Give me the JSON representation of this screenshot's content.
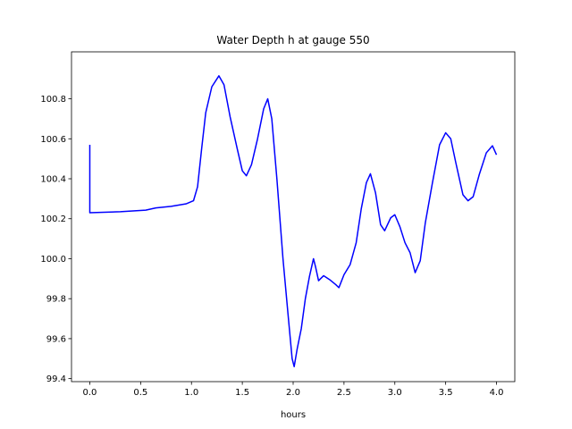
{
  "chart_data": {
    "type": "line",
    "title": "Water Depth h at gauge 550",
    "xlabel": "hours",
    "ylabel": "",
    "xlim": [
      -0.18,
      4.18
    ],
    "ylim": [
      99.385,
      101.035
    ],
    "grid": false,
    "x_ticks": [
      {
        "value": 0.0,
        "label": "0.0"
      },
      {
        "value": 0.5,
        "label": "0.5"
      },
      {
        "value": 1.0,
        "label": "1.0"
      },
      {
        "value": 1.5,
        "label": "1.5"
      },
      {
        "value": 2.0,
        "label": "2.0"
      },
      {
        "value": 2.5,
        "label": "2.5"
      },
      {
        "value": 3.0,
        "label": "3.0"
      },
      {
        "value": 3.5,
        "label": "3.5"
      },
      {
        "value": 4.0,
        "label": "4.0"
      }
    ],
    "y_ticks": [
      {
        "value": 99.4,
        "label": "99.4"
      },
      {
        "value": 99.6,
        "label": "99.6"
      },
      {
        "value": 99.8,
        "label": "99.8"
      },
      {
        "value": 100.0,
        "label": "100.0"
      },
      {
        "value": 100.2,
        "label": "100.2"
      },
      {
        "value": 100.4,
        "label": "100.4"
      },
      {
        "value": 100.6,
        "label": "100.6"
      },
      {
        "value": 100.8,
        "label": "100.8"
      }
    ],
    "series": [
      {
        "color": "#0000ff",
        "points": [
          [
            0.0,
            100.57
          ],
          [
            0.0,
            100.23
          ],
          [
            0.3,
            100.235
          ],
          [
            0.55,
            100.243
          ],
          [
            0.65,
            100.254
          ],
          [
            0.8,
            100.262
          ],
          [
            0.95,
            100.275
          ],
          [
            1.02,
            100.29
          ],
          [
            1.06,
            100.36
          ],
          [
            1.1,
            100.55
          ],
          [
            1.14,
            100.73
          ],
          [
            1.2,
            100.86
          ],
          [
            1.27,
            100.915
          ],
          [
            1.32,
            100.87
          ],
          [
            1.38,
            100.71
          ],
          [
            1.45,
            100.55
          ],
          [
            1.5,
            100.44
          ],
          [
            1.54,
            100.415
          ],
          [
            1.59,
            100.47
          ],
          [
            1.65,
            100.6
          ],
          [
            1.71,
            100.75
          ],
          [
            1.75,
            100.8
          ],
          [
            1.79,
            100.7
          ],
          [
            1.84,
            100.4
          ],
          [
            1.9,
            100.0
          ],
          [
            1.95,
            99.72
          ],
          [
            1.99,
            99.5
          ],
          [
            2.01,
            99.46
          ],
          [
            2.04,
            99.55
          ],
          [
            2.08,
            99.65
          ],
          [
            2.12,
            99.8
          ],
          [
            2.16,
            99.91
          ],
          [
            2.2,
            100.0
          ],
          [
            2.22,
            99.96
          ],
          [
            2.25,
            99.89
          ],
          [
            2.3,
            99.915
          ],
          [
            2.36,
            99.895
          ],
          [
            2.42,
            99.87
          ],
          [
            2.45,
            99.855
          ],
          [
            2.5,
            99.92
          ],
          [
            2.56,
            99.97
          ],
          [
            2.62,
            100.08
          ],
          [
            2.67,
            100.25
          ],
          [
            2.72,
            100.38
          ],
          [
            2.76,
            100.425
          ],
          [
            2.81,
            100.33
          ],
          [
            2.86,
            100.17
          ],
          [
            2.9,
            100.14
          ],
          [
            2.96,
            100.205
          ],
          [
            3.0,
            100.22
          ],
          [
            3.05,
            100.16
          ],
          [
            3.1,
            100.08
          ],
          [
            3.15,
            100.03
          ],
          [
            3.2,
            99.93
          ],
          [
            3.25,
            99.99
          ],
          [
            3.3,
            100.18
          ],
          [
            3.37,
            100.38
          ],
          [
            3.44,
            100.57
          ],
          [
            3.5,
            100.63
          ],
          [
            3.55,
            100.6
          ],
          [
            3.6,
            100.48
          ],
          [
            3.67,
            100.32
          ],
          [
            3.72,
            100.29
          ],
          [
            3.77,
            100.31
          ],
          [
            3.83,
            100.42
          ],
          [
            3.9,
            100.53
          ],
          [
            3.96,
            100.565
          ],
          [
            4.0,
            100.52
          ]
        ]
      }
    ]
  }
}
